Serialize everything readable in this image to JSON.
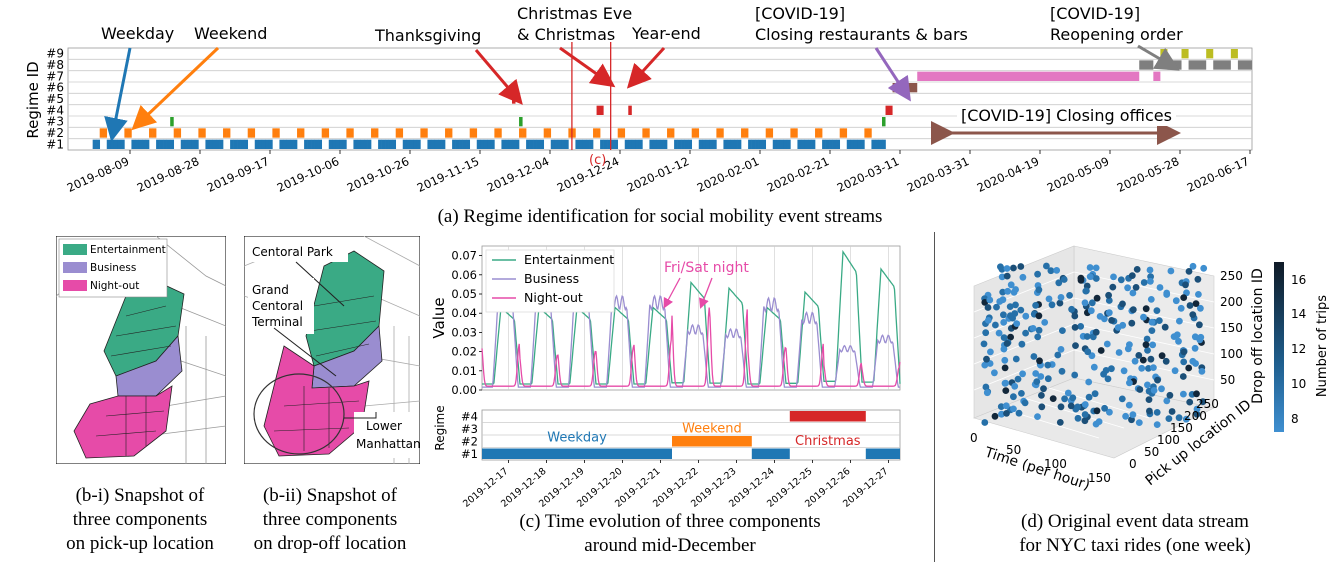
{
  "colors": {
    "regime1": "#1f77b4",
    "regime2": "#ff7f0e",
    "regime3": "#2ca02c",
    "regime4": "#d62728",
    "regime5": "#d62728",
    "regime6": "#8c564b",
    "regime7": "#e377c2",
    "regime8": "#7f7f7f",
    "regime9": "#bcbd22",
    "entertainment": "#3aaa85",
    "business": "#9a8dd0",
    "nightout": "#e64ba8",
    "arrow_blue": "#1f77b4",
    "arrow_orange": "#ff7f0e",
    "arrow_red": "#d62728",
    "arrow_purple": "#9467bd",
    "arrow_gray": "#7f7f7f",
    "arrow_brown": "#8c564b"
  },
  "panel_a": {
    "caption": "(a) Regime identification for social mobility event streams",
    "ylabel": "Regime ID",
    "regime_labels": [
      "#1",
      "#2",
      "#3",
      "#4",
      "#5",
      "#6",
      "#7",
      "#8",
      "#9"
    ],
    "annotations": {
      "weekday": "Weekday",
      "weekend": "Weekend",
      "thanksgiving": "Thanksgiving",
      "christmas_1": "Christmas Eve",
      "christmas_2": "& Christmas",
      "yearend": "Year-end",
      "covid_close_1": "[COVID-19]",
      "covid_close_2": "Closing restaurants & bars",
      "covid_reopen_1": "[COVID-19]",
      "covid_reopen_2": "Reopening order",
      "covid_offices": "[COVID-19] Closing offices",
      "marker_c": "(c)"
    }
  },
  "panel_b1": {
    "caption_1": "(b-i) Snapshot of",
    "caption_2": "three components",
    "caption_3": "on pick-up location",
    "legend": [
      "Entertainment",
      "Business",
      "Night-out"
    ]
  },
  "panel_b2": {
    "caption_1": "(b-ii) Snapshot of",
    "caption_2": "three components",
    "caption_3": "on drop-off location",
    "label_park": "Centoral Park",
    "label_grand_1": "Grand",
    "label_grand_2": "Centoral",
    "label_grand_3": "Terminal",
    "label_lower_1": "Lower",
    "label_lower_2": "Manhattan"
  },
  "panel_c": {
    "caption_1": "(c) Time evolution of three components",
    "caption_2": "around mid-December",
    "ylabel_top": "Value",
    "ylabel_bottom": "Regime",
    "annotation": "Fri/Sat night",
    "regime_ticks": [
      "#1",
      "#2",
      "#3",
      "#4"
    ],
    "regime_band_labels": {
      "weekday": "Weekday",
      "weekend": "Weekend",
      "christmas": "Christmas"
    }
  },
  "panel_d": {
    "caption_1": "(d) Original event data stream",
    "caption_2": "for NYC taxi rides (one week)",
    "xlabel": "Time (per hour)",
    "ylabel": "Pick up location ID",
    "zlabel": "Drop off location ID",
    "colorbar_label": "Number of trips",
    "colorbar_ticks": [
      "8",
      "10",
      "12",
      "14",
      "16"
    ],
    "x_ticks": [
      "0",
      "50",
      "100",
      "150"
    ],
    "y_ticks": [
      "0",
      "50",
      "100",
      "150",
      "200",
      "250"
    ],
    "z_ticks": [
      "50",
      "100",
      "150",
      "200",
      "250"
    ]
  },
  "chart_data": [
    {
      "id": "a",
      "type": "heatmap",
      "title": "",
      "xlabel": "",
      "ylabel": "Regime ID",
      "x_tick_labels": [
        "2019-08-09",
        "2019-08-28",
        "2019-09-17",
        "2019-10-06",
        "2019-10-26",
        "2019-11-15",
        "2019-12-04",
        "2019-12-24",
        "2020-01-12",
        "2020-02-01",
        "2020-02-21",
        "2020-03-11",
        "2020-03-31",
        "2020-04-19",
        "2020-05-09",
        "2020-05-28",
        "2020-06-17"
      ],
      "xlim": [
        "2019-07-25",
        "2020-06-25"
      ],
      "y_categories": [
        "#1",
        "#2",
        "#3",
        "#4",
        "#5",
        "#6",
        "#7",
        "#8",
        "#9"
      ],
      "weekly_pattern": {
        "from": "2019-08-01",
        "to": "2020-03-13",
        "weekday_regime": "#1",
        "weekend_regime": "#2"
      },
      "segments": [
        {
          "regime": "#3",
          "from": "2019-08-23",
          "to": "2019-08-24"
        },
        {
          "regime": "#5",
          "from": "2019-11-28",
          "to": "2019-11-29"
        },
        {
          "regime": "#3",
          "from": "2019-11-30",
          "to": "2019-12-01"
        },
        {
          "regime": "#4",
          "from": "2019-12-22",
          "to": "2019-12-24"
        },
        {
          "regime": "#4",
          "from": "2019-12-31",
          "to": "2020-01-01"
        },
        {
          "regime": "#3",
          "from": "2020-03-12",
          "to": "2020-03-13"
        },
        {
          "regime": "#4",
          "from": "2020-03-13",
          "to": "2020-03-15"
        },
        {
          "regime": "#6",
          "from": "2020-03-15",
          "to": "2020-03-22"
        },
        {
          "regime": "#7",
          "from": "2020-03-22",
          "to": "2020-05-24"
        },
        {
          "regime": "#8",
          "from": "2020-05-24",
          "to": "2020-05-28"
        },
        {
          "regime": "#7",
          "from": "2020-05-28",
          "to": "2020-05-30"
        },
        {
          "regime": "#9",
          "from": "2020-05-30",
          "to": "2020-06-01"
        },
        {
          "regime": "#8",
          "from": "2020-06-01",
          "to": "2020-06-05"
        },
        {
          "regime": "#9",
          "from": "2020-06-05",
          "to": "2020-06-07"
        },
        {
          "regime": "#8",
          "from": "2020-06-07",
          "to": "2020-06-12"
        },
        {
          "regime": "#9",
          "from": "2020-06-12",
          "to": "2020-06-14"
        },
        {
          "regime": "#8",
          "from": "2020-06-14",
          "to": "2020-06-19"
        },
        {
          "regime": "#9",
          "from": "2020-06-19",
          "to": "2020-06-21"
        },
        {
          "regime": "#8",
          "from": "2020-06-21",
          "to": "2020-06-25"
        }
      ],
      "vertical_lines": [
        "2019-12-15",
        "2019-12-26"
      ]
    },
    {
      "id": "c-top",
      "type": "line",
      "title": "",
      "xlabel": "",
      "ylabel": "Value",
      "ylim": [
        0,
        0.075
      ],
      "y_ticks": [
        0.0,
        0.01,
        0.02,
        0.03,
        0.04,
        0.05,
        0.06,
        0.07
      ],
      "x_tick_labels": [
        "2019-12-17",
        "2019-12-18",
        "2019-12-19",
        "2019-12-20",
        "2019-12-21",
        "2019-12-22",
        "2019-12-23",
        "2019-12-24",
        "2019-12-25",
        "2019-12-26",
        "2019-12-27"
      ],
      "x_unit": "days since 2019-12-16",
      "xlim": [
        0,
        11
      ],
      "daily_peaks": [
        {
          "day": 0,
          "entertainment": 0.042,
          "business": 0.044,
          "nightout": 0.022
        },
        {
          "day": 1,
          "entertainment": 0.042,
          "business": 0.044,
          "nightout": 0.016
        },
        {
          "day": 2,
          "entertainment": 0.042,
          "business": 0.044,
          "nightout": 0.018
        },
        {
          "day": 3,
          "entertainment": 0.042,
          "business": 0.044,
          "nightout": 0.02
        },
        {
          "day": 4,
          "entertainment": 0.042,
          "business": 0.044,
          "nightout": 0.024
        },
        {
          "day": 5,
          "entertainment": 0.055,
          "business": 0.03,
          "nightout": 0.041
        },
        {
          "day": 6,
          "entertainment": 0.052,
          "business": 0.028,
          "nightout": 0.04
        },
        {
          "day": 7,
          "entertainment": 0.042,
          "business": 0.043,
          "nightout": 0.02
        },
        {
          "day": 8,
          "entertainment": 0.05,
          "business": 0.036,
          "nightout": 0.022
        },
        {
          "day": 9,
          "entertainment": 0.071,
          "business": 0.02,
          "nightout": 0.012
        },
        {
          "day": 10,
          "entertainment": 0.062,
          "business": 0.025,
          "nightout": 0.01
        },
        {
          "day": 11,
          "entertainment": 0.045,
          "business": 0.04,
          "nightout": 0.014
        }
      ],
      "series": [
        {
          "name": "Entertainment"
        },
        {
          "name": "Business"
        },
        {
          "name": "Night-out"
        }
      ]
    },
    {
      "id": "c-bottom",
      "type": "heatmap",
      "ylabel": "Regime",
      "y_categories": [
        "#1",
        "#2",
        "#3",
        "#4"
      ],
      "x_unit": "days since 2019-12-16",
      "segments": [
        {
          "regime": "#1",
          "from": 0,
          "to": 5,
          "label": "Weekday"
        },
        {
          "regime": "#2",
          "from": 5,
          "to": 7.1,
          "label": "Weekend"
        },
        {
          "regime": "#1",
          "from": 7.1,
          "to": 8.1,
          "label": ""
        },
        {
          "regime": "#4",
          "from": 8.1,
          "to": 10.1,
          "label": "Christmas"
        },
        {
          "regime": "#1",
          "from": 10.1,
          "to": 11.4,
          "label": ""
        }
      ]
    }
  ]
}
